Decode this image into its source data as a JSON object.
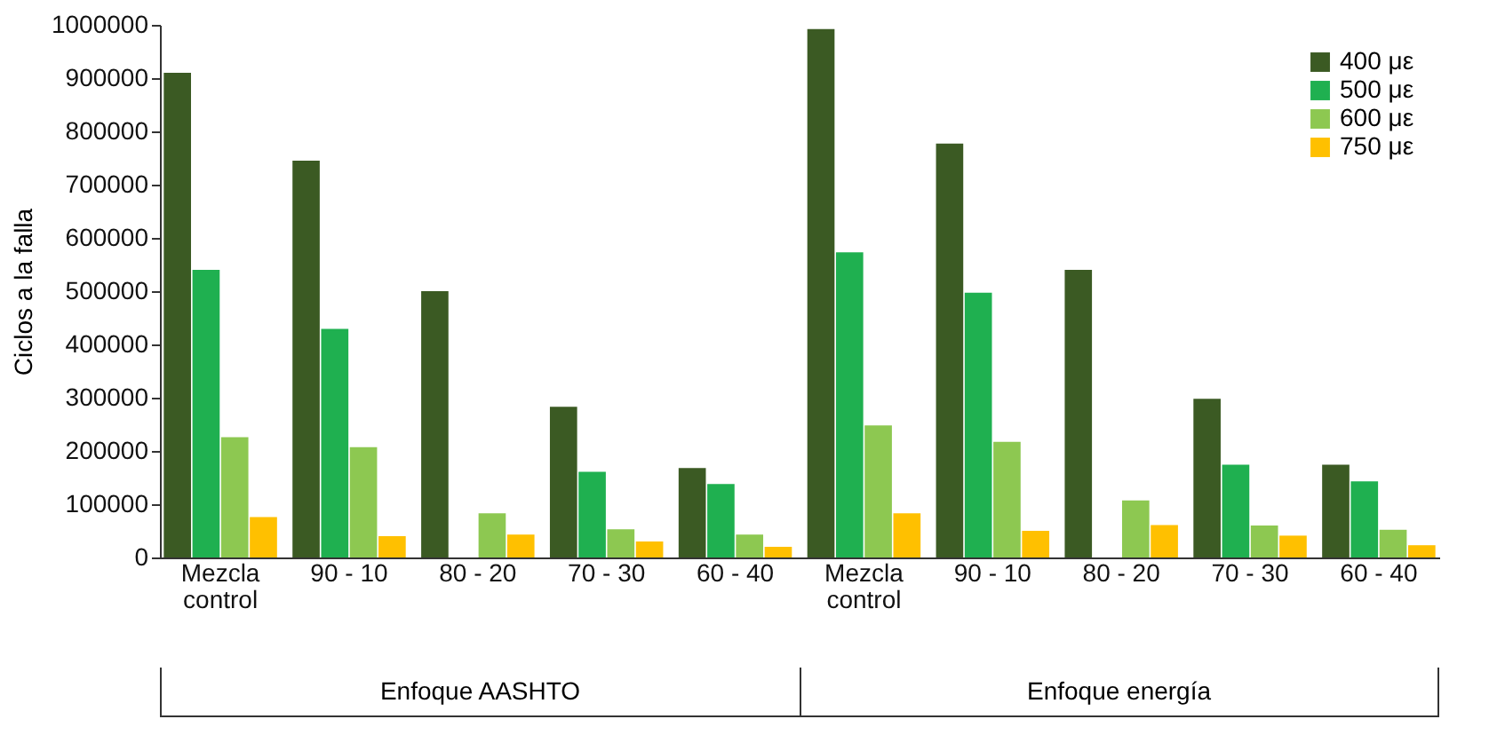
{
  "chart_data": {
    "type": "bar",
    "ylabel": "Ciclos a la falla",
    "categories": [
      "Mezcla control",
      "90 - 10",
      "80 - 20",
      "70 - 30",
      "60 - 40",
      "Mezcla control",
      "90 - 10",
      "80 - 20",
      "70 - 30",
      "60 - 40"
    ],
    "series": [
      {
        "name": "400 με",
        "color": "#3b5a23",
        "values": [
          910000,
          745000,
          500000,
          283000,
          168000,
          992000,
          777000,
          540000,
          298000,
          174000
        ]
      },
      {
        "name": "500 με",
        "color": "#1fb050",
        "values": [
          540000,
          429000,
          null,
          161000,
          138000,
          573000,
          497000,
          null,
          174000,
          143000
        ]
      },
      {
        "name": "600 με",
        "color": "#8dc851",
        "values": [
          226000,
          207000,
          83000,
          53000,
          43000,
          248000,
          217000,
          107000,
          60000,
          52000
        ]
      },
      {
        "name": "750 με",
        "color": "#ffc000",
        "values": [
          76000,
          40000,
          43000,
          30000,
          20000,
          83000,
          50000,
          61000,
          41000,
          23000
        ]
      }
    ],
    "ylim": [
      0,
      1000000
    ],
    "yticks": [
      0,
      100000,
      200000,
      300000,
      400000,
      500000,
      600000,
      700000,
      800000,
      900000,
      1000000
    ],
    "legend": "top right",
    "grid": false,
    "annotations": [
      "Enfoque AASHTO",
      "Enfoque energía"
    ]
  }
}
